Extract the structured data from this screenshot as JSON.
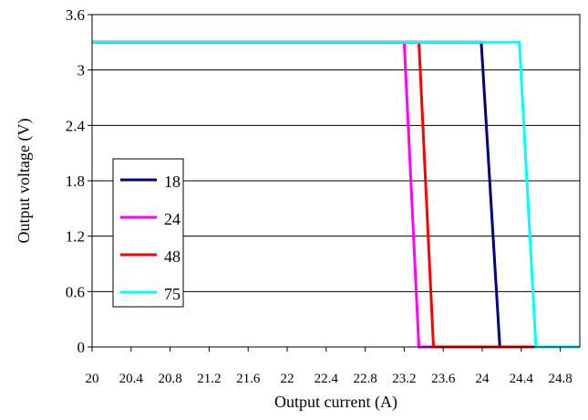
{
  "chart_data": {
    "type": "line",
    "title": "",
    "xlabel": "Output current (A)",
    "ylabel": "Output voltage (V)",
    "xlim": [
      20,
      25.0
    ],
    "ylim": [
      0,
      3.6
    ],
    "x_ticks": [
      20,
      20.4,
      20.8,
      21.2,
      21.6,
      22,
      22.4,
      22.8,
      23.2,
      23.6,
      24,
      24.4,
      24.8
    ],
    "x_tick_labels": [
      "20",
      "20.4",
      "20.8",
      "21.2",
      "21.6",
      "22",
      "22.4",
      "22.8",
      "23.2",
      "23.6",
      "24",
      "24.4",
      "24.8"
    ],
    "y_ticks": [
      0,
      0.6,
      1.2,
      1.8,
      2.4,
      3,
      3.6
    ],
    "y_tick_labels": [
      "0",
      "0.6",
      "1.2",
      "1.8",
      "2.4",
      "3",
      "3.6"
    ],
    "grid": "horizontal",
    "legend_position": "center-left",
    "series": [
      {
        "name": "18",
        "color": "#000080",
        "x": [
          20,
          23.99,
          24.18,
          25.0
        ],
        "y": [
          3.3,
          3.3,
          0,
          0
        ]
      },
      {
        "name": "24",
        "color": "#ff00ff",
        "x": [
          20,
          23.2,
          23.35,
          25.0
        ],
        "y": [
          3.3,
          3.3,
          0,
          0
        ]
      },
      {
        "name": "48",
        "color": "#ff0000",
        "x": [
          20,
          23.35,
          23.5,
          25.0
        ],
        "y": [
          3.3,
          3.3,
          0,
          0
        ]
      },
      {
        "name": "75",
        "color": "#00ffff",
        "x": [
          20,
          24.38,
          24.55,
          25.0
        ],
        "y": [
          3.3,
          3.3,
          0,
          0
        ]
      }
    ]
  }
}
